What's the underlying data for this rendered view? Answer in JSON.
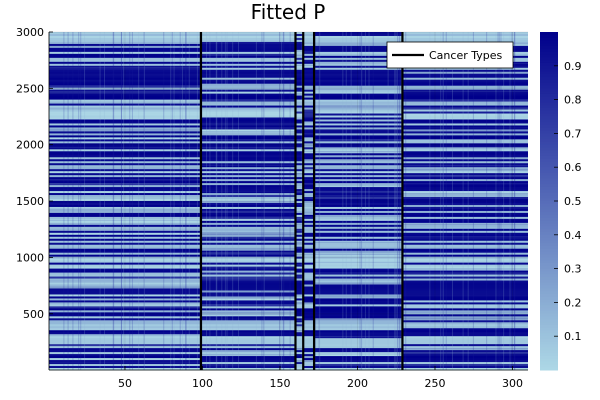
{
  "chart_data": {
    "type": "heatmap",
    "title": "Fitted P",
    "xlabel": "",
    "ylabel": "",
    "x_ticks": [
      50,
      100,
      150,
      200,
      250,
      300
    ],
    "y_ticks": [
      500,
      1000,
      1500,
      2000,
      2500,
      3000
    ],
    "xlim": [
      1,
      310
    ],
    "ylim": [
      1,
      3000
    ],
    "colorbar": {
      "range": [
        0,
        1
      ],
      "ticks": [
        "0.1",
        "0.2",
        "0.3",
        "0.4",
        "0.5",
        "0.6",
        "0.7",
        "0.8",
        "0.9"
      ],
      "low_color": "#add8e6",
      "high_color": "#00008b"
    },
    "vertical_lines": [
      99,
      160,
      165,
      172,
      229
    ],
    "legend": {
      "label": "Cancer Types",
      "position": "top-right"
    },
    "grid": true
  }
}
